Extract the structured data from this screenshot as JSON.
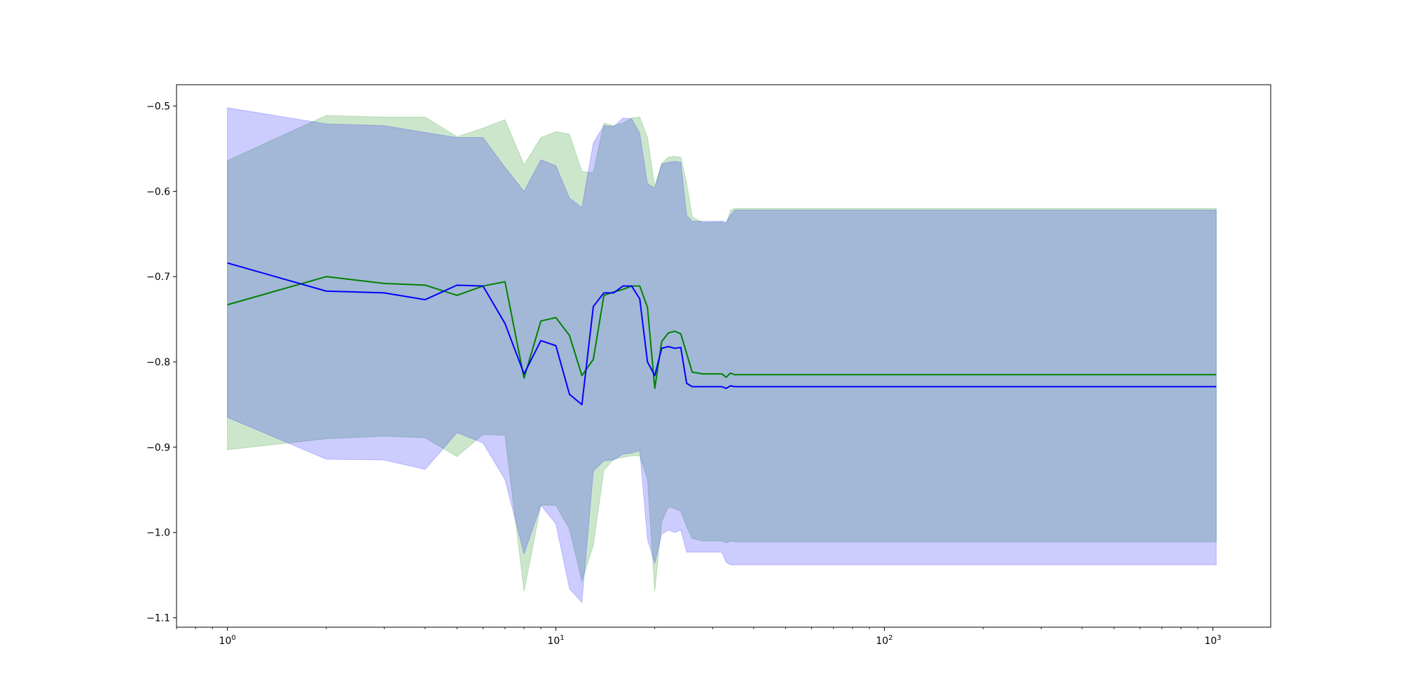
{
  "chart_data": {
    "type": "line",
    "title": "",
    "xlabel": "",
    "ylabel": "",
    "xscale": "log",
    "xlim": [
      0.7,
      1500
    ],
    "ylim": [
      -1.111,
      -0.475
    ],
    "grid": false,
    "legend": "none",
    "x_ticks": [
      {
        "value": 1,
        "base": "10",
        "exp": "0"
      },
      {
        "value": 10,
        "base": "10",
        "exp": "1"
      },
      {
        "value": 100,
        "base": "10",
        "exp": "2"
      },
      {
        "value": 1000,
        "base": "10",
        "exp": "3"
      }
    ],
    "y_ticks": [
      {
        "value": -0.5,
        "label": "−0.5"
      },
      {
        "value": -0.6,
        "label": "−0.6"
      },
      {
        "value": -0.7,
        "label": "−0.7"
      },
      {
        "value": -0.8,
        "label": "−0.8"
      },
      {
        "value": -0.9,
        "label": "−0.9"
      },
      {
        "value": -1.0,
        "label": "−1.0"
      },
      {
        "value": -1.1,
        "label": "−1.1"
      }
    ],
    "series": [
      {
        "color": "#008000",
        "band_color": "#008000",
        "band_opacity": 0.2,
        "x": [
          1,
          2,
          3,
          4,
          5,
          6,
          7,
          8,
          9,
          10,
          11,
          12,
          13,
          14,
          15,
          16,
          17,
          18,
          19,
          20,
          21,
          22,
          23,
          24,
          25,
          26,
          28,
          32,
          33,
          34,
          35,
          40,
          100,
          1024
        ],
        "y": [
          -0.733,
          -0.7,
          -0.708,
          -0.71,
          -0.722,
          -0.711,
          -0.706,
          -0.819,
          -0.752,
          -0.748,
          -0.769,
          -0.816,
          -0.797,
          -0.722,
          -0.718,
          -0.715,
          -0.711,
          -0.711,
          -0.736,
          -0.831,
          -0.776,
          -0.766,
          -0.764,
          -0.767,
          -0.79,
          -0.812,
          -0.814,
          -0.814,
          -0.818,
          -0.813,
          -0.815,
          -0.815,
          -0.815,
          -0.815
        ],
        "lower": [
          -0.903,
          -0.89,
          -0.887,
          -0.889,
          -0.911,
          -0.885,
          -0.886,
          -1.069,
          -0.968,
          -0.968,
          -0.996,
          -1.057,
          -1.015,
          -0.927,
          -0.914,
          -0.912,
          -0.91,
          -0.91,
          -0.937,
          -1.069,
          -0.987,
          -0.97,
          -0.972,
          -0.975,
          -0.993,
          -1.007,
          -1.01,
          -1.01,
          -1.012,
          -1.01,
          -1.011,
          -1.011,
          -1.011,
          -1.011
        ],
        "upper": [
          -0.564,
          -0.511,
          -0.513,
          -0.513,
          -0.536,
          -0.526,
          -0.516,
          -0.569,
          -0.537,
          -0.53,
          -0.533,
          -0.577,
          -0.578,
          -0.52,
          -0.523,
          -0.52,
          -0.514,
          -0.513,
          -0.537,
          -0.594,
          -0.567,
          -0.56,
          -0.559,
          -0.56,
          -0.59,
          -0.63,
          -0.637,
          -0.636,
          -0.638,
          -0.622,
          -0.62,
          -0.62,
          -0.62,
          -0.62
        ]
      },
      {
        "color": "#0000ff",
        "band_color": "#0000ff",
        "band_opacity": 0.2,
        "x": [
          1,
          2,
          3,
          4,
          5,
          6,
          7,
          8,
          9,
          10,
          11,
          12,
          13,
          14,
          15,
          16,
          17,
          18,
          19,
          20,
          21,
          22,
          23,
          24,
          25,
          26,
          28,
          32,
          33,
          34,
          35,
          40,
          100,
          1024
        ],
        "y": [
          -0.684,
          -0.717,
          -0.719,
          -0.727,
          -0.71,
          -0.711,
          -0.755,
          -0.814,
          -0.775,
          -0.781,
          -0.838,
          -0.85,
          -0.735,
          -0.719,
          -0.719,
          -0.711,
          -0.711,
          -0.726,
          -0.8,
          -0.816,
          -0.784,
          -0.782,
          -0.784,
          -0.783,
          -0.825,
          -0.829,
          -0.829,
          -0.829,
          -0.831,
          -0.828,
          -0.829,
          -0.829,
          -0.829,
          -0.829
        ],
        "lower": [
          -0.865,
          -0.914,
          -0.915,
          -0.926,
          -0.883,
          -0.895,
          -0.938,
          -1.025,
          -0.968,
          -0.99,
          -1.066,
          -1.082,
          -0.928,
          -0.916,
          -0.915,
          -0.908,
          -0.907,
          -0.904,
          -1.008,
          -1.036,
          -1.002,
          -0.997,
          -1.0,
          -0.997,
          -1.023,
          -1.023,
          -1.023,
          -1.023,
          -1.035,
          -1.038,
          -1.038,
          -1.038,
          -1.038,
          -1.038
        ],
        "upper": [
          -0.502,
          -0.521,
          -0.523,
          -0.531,
          -0.537,
          -0.537,
          -0.572,
          -0.6,
          -0.563,
          -0.57,
          -0.608,
          -0.619,
          -0.543,
          -0.523,
          -0.524,
          -0.514,
          -0.515,
          -0.532,
          -0.591,
          -0.596,
          -0.568,
          -0.566,
          -0.565,
          -0.566,
          -0.628,
          -0.635,
          -0.635,
          -0.635,
          -0.636,
          -0.628,
          -0.622,
          -0.622,
          -0.622,
          -0.622
        ]
      }
    ]
  }
}
